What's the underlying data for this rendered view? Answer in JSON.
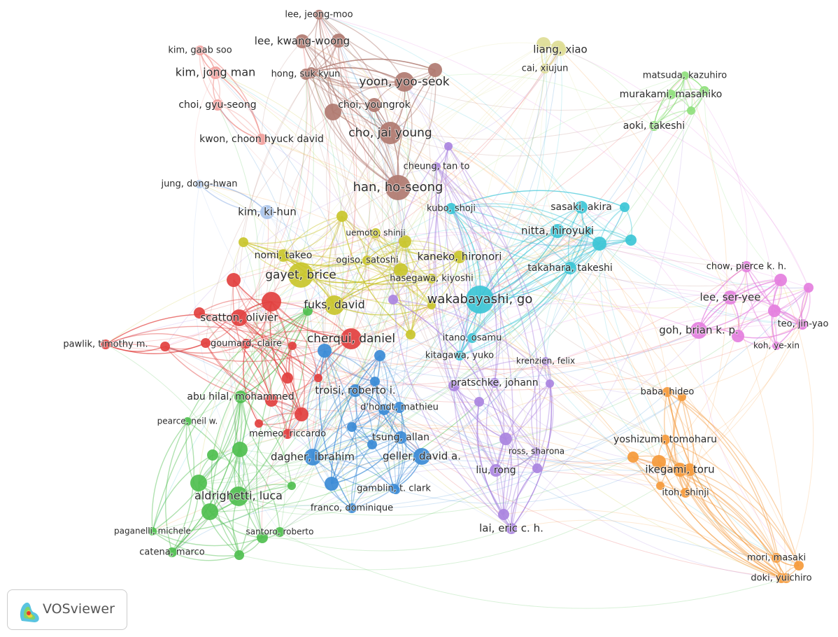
{
  "network": {
    "clusters": [
      {
        "color": "#b07a70",
        "nodes": [
          "lee, jeong-moo",
          "lee, kwang-woong",
          "hong, suk kyun",
          "yoon, yoo-seok",
          "choi, youngrok",
          "cho, jai young",
          "han, ho-seong"
        ]
      },
      {
        "color": "#f2a09c",
        "nodes": [
          "kim, gaab soo",
          "kim, jong man",
          "choi, gyu-seong",
          "kwon, choon hyuck david"
        ]
      },
      {
        "color": "#a9c4ec",
        "nodes": [
          "jung, dong-hwan",
          "kim, ki-hun"
        ]
      },
      {
        "color": "#dedd96",
        "nodes": [
          "liang, xiao",
          "cai, xiujun"
        ]
      },
      {
        "color": "#8fe07c",
        "nodes": [
          "matsuda, kazuhiro",
          "murakami, masahiko",
          "aoki, takeshi"
        ]
      },
      {
        "color": "#3cc6d6",
        "nodes": [
          "kubo, shoji",
          "sasaki, akira",
          "nitta, hiroyuki",
          "takahara, takeshi",
          "wakabayashi, go",
          "itano, osamu",
          "kitagawa, yuko"
        ]
      },
      {
        "color": "#c9c52c",
        "nodes": [
          "uemoto, shinji",
          "nomi, takeo",
          "ogiso, satoshi",
          "kaneko, hironori",
          "hasegawa, kiyoshi",
          "gayet, brice",
          "fuks, david"
        ]
      },
      {
        "color": "#e2403f",
        "nodes": [
          "scatton, olivier",
          "pawlik, timothy m.",
          "goumard, claire",
          "cherqui, daniel",
          "memeo, riccardo"
        ]
      },
      {
        "color": "#e47fde",
        "nodes": [
          "chow, pierce k. h.",
          "lee, ser-yee",
          "goh, brian k. p.",
          "teo, jin-yao",
          "koh, ye-xin"
        ]
      },
      {
        "color": "#3b8bd6",
        "nodes": [
          "troisi, roberto i.",
          "d'hondt, mathieu",
          "tsung, allan",
          "dagher, ibrahim",
          "geller, david a.",
          "gamblin, t. clark",
          "franco, dominique"
        ]
      },
      {
        "color": "#aa84e0",
        "nodes": [
          "cheung, tan to",
          "krenzien, felix",
          "pratschke, johann",
          "ross, sharona",
          "liu, rong",
          "lai, eric c. h."
        ]
      },
      {
        "color": "#f59a3b",
        "nodes": [
          "baba, hideo",
          "yoshizumi, tomoharu",
          "ikegami, toru",
          "itoh, shinji",
          "mori, masaki",
          "doki, yuichiro"
        ]
      },
      {
        "color": "#4fbf4f",
        "nodes": [
          "abu hilal, mohammed",
          "pearce, neil w.",
          "aldrighetti, luca",
          "paganelli, michele",
          "santoro, roberto",
          "catena, marco"
        ]
      }
    ]
  },
  "logo": "VOSviewer"
}
